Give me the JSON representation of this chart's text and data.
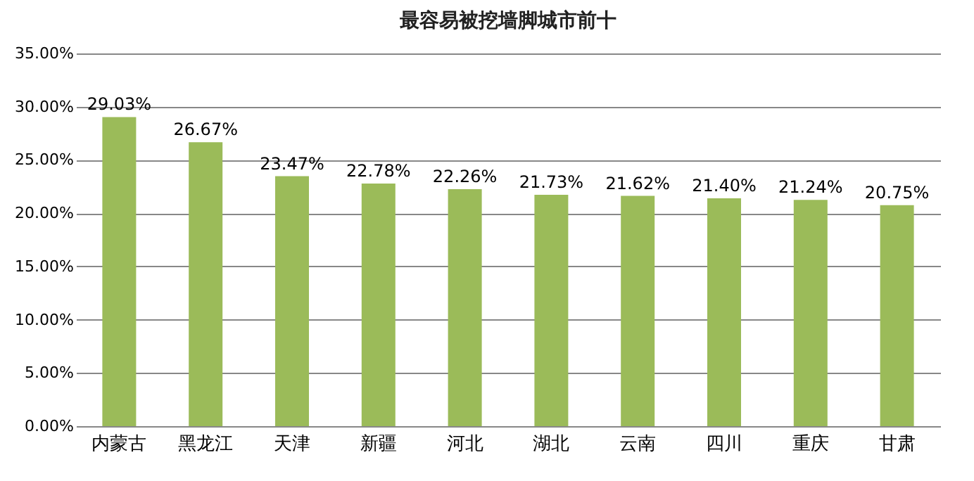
{
  "chart_data": {
    "type": "bar",
    "title": "最容易被挖墙脚城市前十",
    "categories": [
      "内蒙古",
      "黑龙江",
      "天津",
      "新疆",
      "河北",
      "湖北",
      "云南",
      "四川",
      "重庆",
      "甘肃"
    ],
    "values": [
      29.03,
      26.67,
      23.47,
      22.78,
      22.26,
      21.73,
      21.62,
      21.4,
      21.24,
      20.75
    ],
    "value_labels": [
      "29.03%",
      "26.67%",
      "23.47%",
      "22.78%",
      "22.26%",
      "21.73%",
      "21.62%",
      "21.40%",
      "21.24%",
      "20.75%"
    ],
    "color": "#9bbb59",
    "ylim": [
      0,
      35
    ],
    "yticks": [
      {
        "value": 0,
        "label": "0.00%"
      },
      {
        "value": 5,
        "label": "5.00%"
      },
      {
        "value": 10,
        "label": "10.00%"
      },
      {
        "value": 15,
        "label": "15.00%"
      },
      {
        "value": 20,
        "label": "20.00%"
      },
      {
        "value": 25,
        "label": "25.00%"
      },
      {
        "value": 30,
        "label": "30.00%"
      },
      {
        "value": 35,
        "label": "35.00%"
      }
    ],
    "grid": "y"
  }
}
